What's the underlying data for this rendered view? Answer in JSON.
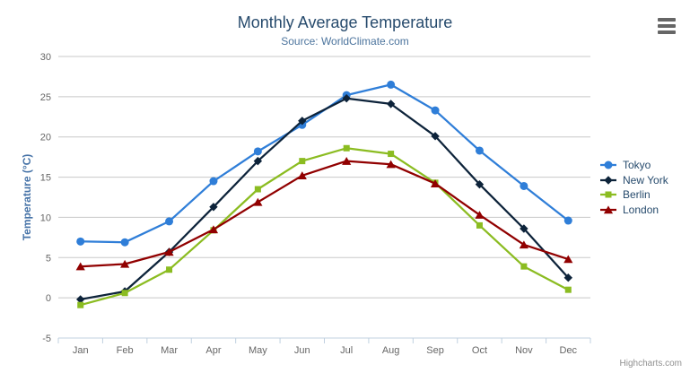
{
  "header": {
    "title": "Monthly Average Temperature",
    "subtitle": "Source: WorldClimate.com"
  },
  "export_menu": {
    "icon": "hamburger-icon"
  },
  "credits": {
    "label": "Highcharts.com"
  },
  "colors": {
    "title": "#274b6d",
    "subtitle": "#4d759e",
    "yaxis_title": "#4572a7",
    "grid": "#c8c8c8",
    "axis_line": "#c0d0e0",
    "tick_label": "#666666",
    "legend_text": "#274b6d",
    "credits_text": "#909090",
    "menu_icon": "#666666"
  },
  "chart_data": {
    "type": "line",
    "title": "Monthly Average Temperature",
    "subtitle": "Source: WorldClimate.com",
    "categories": [
      "Jan",
      "Feb",
      "Mar",
      "Apr",
      "May",
      "Jun",
      "Jul",
      "Aug",
      "Sep",
      "Oct",
      "Nov",
      "Dec"
    ],
    "series": [
      {
        "name": "Tokyo",
        "color": "#2f7ed8",
        "marker": "circle",
        "values": [
          7.0,
          6.9,
          9.5,
          14.5,
          18.2,
          21.5,
          25.2,
          26.5,
          23.3,
          18.3,
          13.9,
          9.6
        ]
      },
      {
        "name": "New York",
        "color": "#0d233a",
        "marker": "diamond",
        "values": [
          -0.2,
          0.8,
          5.7,
          11.3,
          17.0,
          22.0,
          24.8,
          24.1,
          20.1,
          14.1,
          8.6,
          2.5
        ]
      },
      {
        "name": "Berlin",
        "color": "#8bbc21",
        "marker": "square",
        "values": [
          -0.9,
          0.6,
          3.5,
          8.4,
          13.5,
          17.0,
          18.6,
          17.9,
          14.3,
          9.0,
          3.9,
          1.0
        ]
      },
      {
        "name": "London",
        "color": "#910000",
        "marker": "triangle",
        "values": [
          3.9,
          4.2,
          5.7,
          8.5,
          11.9,
          15.2,
          17.0,
          16.6,
          14.2,
          10.3,
          6.6,
          4.8
        ]
      }
    ],
    "xlabel": "",
    "ylabel": "Temperature (°C)",
    "ylim": [
      -5,
      30
    ],
    "ytick_step": 5,
    "grid": true,
    "legend_position": "right"
  }
}
